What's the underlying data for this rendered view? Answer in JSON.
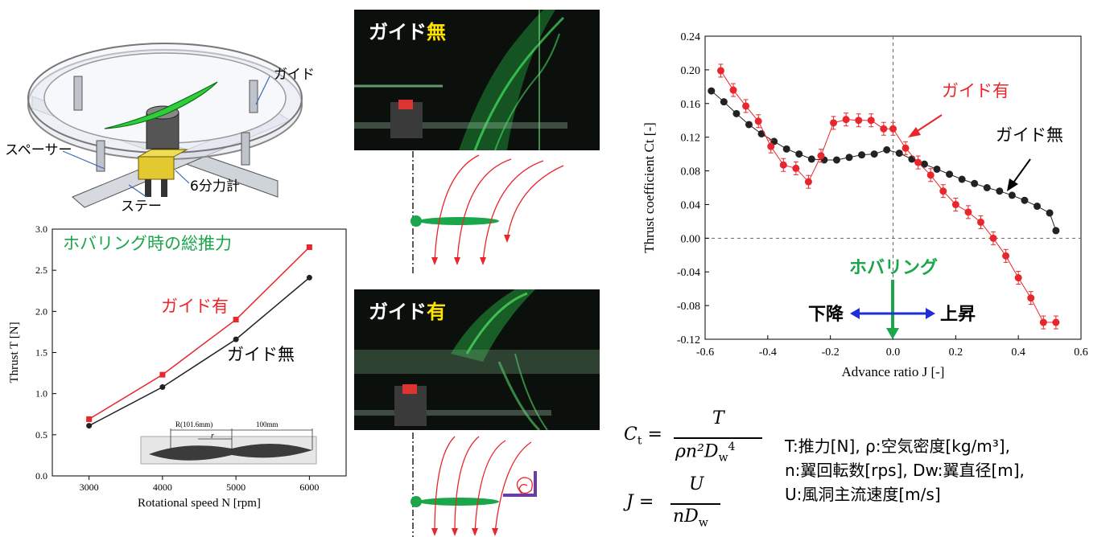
{
  "device": {
    "labels": {
      "guide": "ガイド",
      "spacer": "スペーサー",
      "stay": "ステー",
      "balance": "6分力計"
    }
  },
  "photos": {
    "top": {
      "label_prefix": "ガイド",
      "label_highlight": "無"
    },
    "bottom": {
      "label_prefix": "ガイド",
      "label_highlight": "有"
    }
  },
  "left_chart_annotations": {
    "hover_total": "ホバリング時の総推力",
    "guide_with": "ガイド有",
    "guide_without": "ガイド無",
    "propeller_R": "R(101.6mm)",
    "propeller_r": "r",
    "propeller_100": "100mm"
  },
  "right_chart_annotations": {
    "guide_with": "ガイド有",
    "guide_without": "ガイド無",
    "hovering": "ホバリング",
    "descend": "下降",
    "ascend": "上昇"
  },
  "formulas": {
    "ct_lhs": "C",
    "ct_sub": "t",
    "ct_num": "T",
    "ct_den": "ρn²D",
    "ct_den_sub": "w",
    "ct_den_sup": "4",
    "j_lhs": "J",
    "j_num": "U",
    "j_den": "nD",
    "j_den_sub": "w",
    "def_line1": "T:推力[N], ρ:空気密度[kg/m³],",
    "def_line2": "n:翼回転数[rps], Dw:翼直径[m],",
    "def_line3": "U:風洞主流速度[m/s]"
  },
  "colors": {
    "red": "#e8262b",
    "black": "#222222",
    "green": "#1aa64a",
    "blue": "#1f2fd6",
    "laser": "#39d656"
  },
  "chart_data": [
    {
      "type": "line",
      "xlabel": "Rotational speed N [rpm]",
      "ylabel": "Thrust T [N]",
      "xlim": [
        2500,
        6500
      ],
      "ylim": [
        0,
        3.0
      ],
      "xticks": [
        "3000",
        "4000",
        "5000",
        "6000"
      ],
      "yticks": [
        "0.0",
        "0.5",
        "1.0",
        "1.5",
        "2.0",
        "2.5",
        "3.0"
      ],
      "series": [
        {
          "name": "ガイド有",
          "color": "#e8262b",
          "x": [
            3000,
            4000,
            5000,
            6000
          ],
          "y": [
            0.69,
            1.23,
            1.9,
            2.78
          ]
        },
        {
          "name": "ガイド無",
          "color": "#222222",
          "x": [
            3000,
            4000,
            5000,
            6000
          ],
          "y": [
            0.61,
            1.08,
            1.66,
            2.41
          ]
        }
      ]
    },
    {
      "type": "scatter",
      "xlabel": "Advance ratio J [-]",
      "ylabel": "Thrust coefficient Ct [-]",
      "xlim": [
        -0.6,
        0.6
      ],
      "ylim": [
        -0.12,
        0.24
      ],
      "xticks": [
        "-0.6",
        "-0.4",
        "-0.2",
        "0.0",
        "0.2",
        "0.4",
        "0.6"
      ],
      "yticks": [
        "-0.12",
        "-0.08",
        "-0.04",
        "0.00",
        "0.04",
        "0.08",
        "0.12",
        "0.16",
        "0.20",
        "0.24"
      ],
      "series": [
        {
          "name": "ガイド有",
          "color": "#e8262b",
          "x": [
            -0.55,
            -0.51,
            -0.47,
            -0.43,
            -0.39,
            -0.35,
            -0.31,
            -0.27,
            -0.23,
            -0.19,
            -0.15,
            -0.11,
            -0.07,
            -0.03,
            0.0,
            0.04,
            0.08,
            0.12,
            0.16,
            0.2,
            0.24,
            0.28,
            0.32,
            0.36,
            0.4,
            0.44,
            0.48,
            0.52
          ],
          "y": [
            0.199,
            0.176,
            0.157,
            0.139,
            0.109,
            0.087,
            0.083,
            0.067,
            0.098,
            0.137,
            0.141,
            0.14,
            0.14,
            0.13,
            0.13,
            0.107,
            0.09,
            0.075,
            0.056,
            0.04,
            0.031,
            0.019,
            0.0,
            -0.021,
            -0.047,
            -0.071,
            -0.1,
            -0.1
          ]
        },
        {
          "name": "ガイド無",
          "color": "#222222",
          "x": [
            -0.58,
            -0.54,
            -0.5,
            -0.46,
            -0.42,
            -0.38,
            -0.34,
            -0.3,
            -0.26,
            -0.22,
            -0.18,
            -0.14,
            -0.1,
            -0.06,
            -0.02,
            0.02,
            0.06,
            0.1,
            0.14,
            0.18,
            0.22,
            0.26,
            0.3,
            0.34,
            0.38,
            0.42,
            0.46,
            0.5,
            0.52
          ],
          "y": [
            0.175,
            0.162,
            0.148,
            0.135,
            0.124,
            0.115,
            0.106,
            0.1,
            0.094,
            0.093,
            0.093,
            0.096,
            0.099,
            0.1,
            0.105,
            0.101,
            0.094,
            0.088,
            0.082,
            0.076,
            0.07,
            0.065,
            0.06,
            0.056,
            0.051,
            0.045,
            0.038,
            0.03,
            0.009
          ]
        }
      ]
    }
  ]
}
